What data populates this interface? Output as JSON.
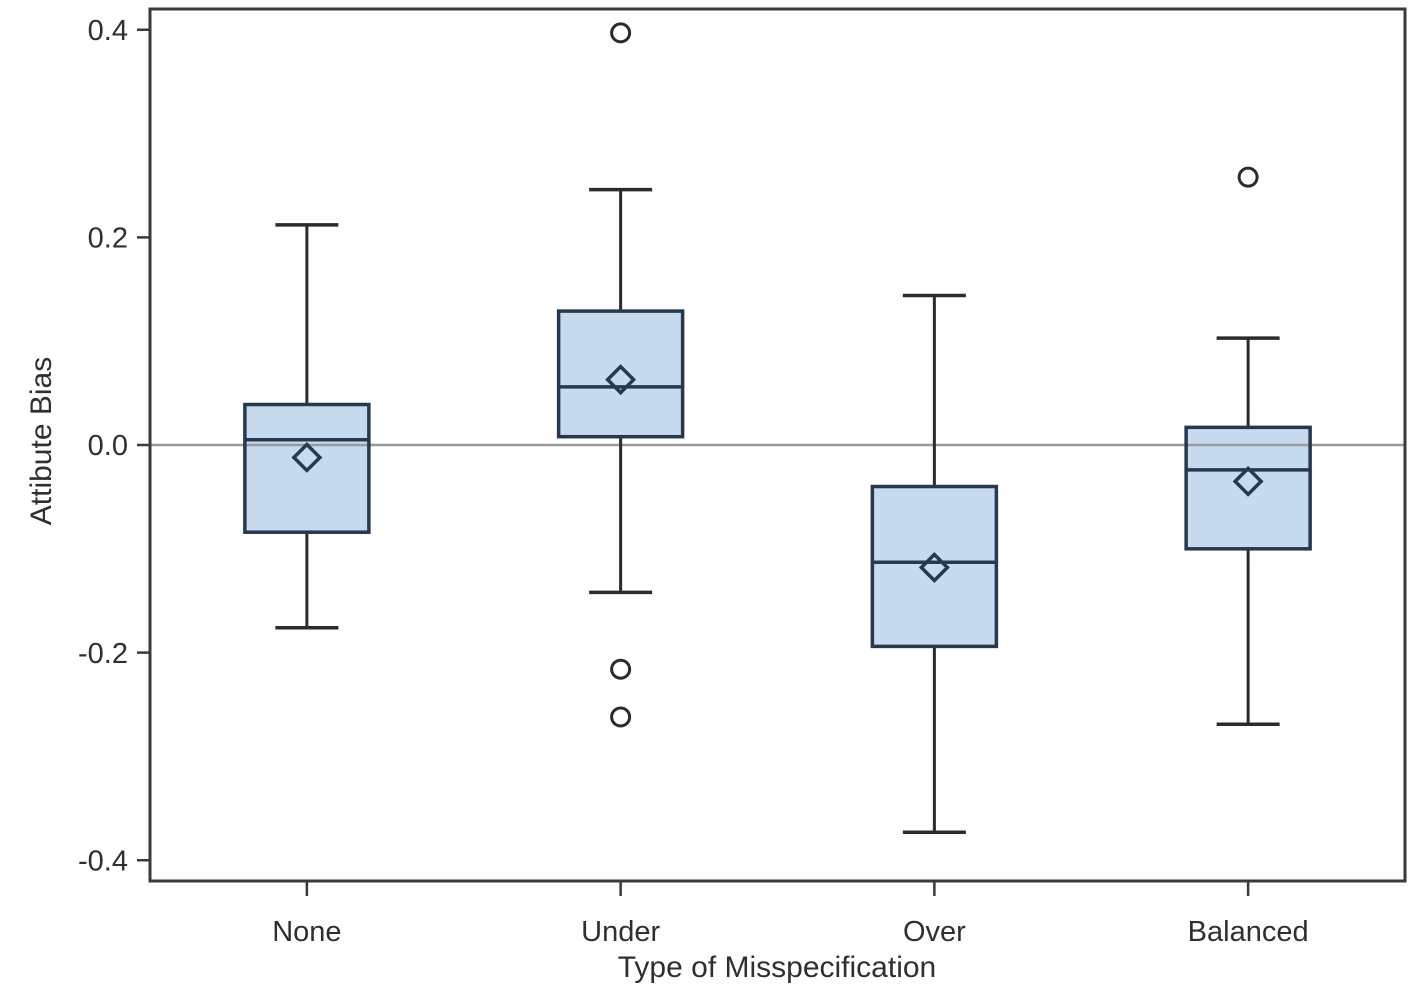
{
  "chart_data": {
    "type": "boxplot",
    "title": "",
    "xlabel": "Type of Misspecification",
    "ylabel": "Attibute Bias",
    "categories": [
      "None",
      "Under",
      "Over",
      "Balanced"
    ],
    "ylim": [
      -0.42,
      0.42
    ],
    "yticks": [
      {
        "value": 0.4,
        "label": "0.4"
      },
      {
        "value": 0.2,
        "label": "0.2"
      },
      {
        "value": 0.0,
        "label": "0.0"
      },
      {
        "value": -0.2,
        "label": "-0.2"
      },
      {
        "value": -0.4,
        "label": "-0.4"
      }
    ],
    "reference_line_y": 0.0,
    "grid": false,
    "legend": "none",
    "series": [
      {
        "category": "None",
        "whisker_low": -0.176,
        "q1": -0.084,
        "median": 0.005,
        "q3": 0.039,
        "whisker_high": 0.212,
        "mean": -0.012,
        "outliers": []
      },
      {
        "category": "Under",
        "whisker_low": -0.142,
        "q1": 0.008,
        "median": 0.056,
        "q3": 0.129,
        "whisker_high": 0.246,
        "mean": 0.063,
        "outliers": [
          0.397,
          -0.216,
          -0.262
        ]
      },
      {
        "category": "Over",
        "whisker_low": -0.373,
        "q1": -0.194,
        "median": -0.113,
        "q3": -0.04,
        "whisker_high": 0.144,
        "mean": -0.118,
        "outliers": []
      },
      {
        "category": "Balanced",
        "whisker_low": -0.269,
        "q1": -0.1,
        "median": -0.024,
        "q3": 0.017,
        "whisker_high": 0.103,
        "mean": -0.035,
        "outliers": [
          0.258
        ]
      }
    ],
    "colors": {
      "box_fill": "#c8daee",
      "box_border": "#26394e",
      "whisker": "#2b2b2b",
      "mean_marker": "#26394e",
      "outlier": "#2b2b2b",
      "reference_line": "#9b9b9b",
      "axis": "#3a3a3a",
      "text": "#2f2f2f",
      "background": "#ffffff"
    }
  }
}
